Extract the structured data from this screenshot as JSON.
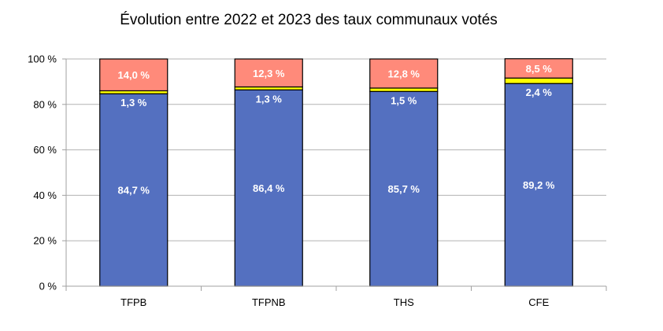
{
  "chart_data": {
    "type": "bar",
    "stacked": true,
    "title": "Évolution entre 2022 et 2023 des taux communaux votés",
    "categories": [
      "TFPB",
      "TFPNB",
      "THS",
      "CFE"
    ],
    "series": [
      {
        "color": "#5470c0",
        "values": [
          84.7,
          86.4,
          85.7,
          89.2
        ],
        "labels": [
          "84,7 %",
          "86,4 %",
          "85,7 %",
          "89,2 %"
        ]
      },
      {
        "color": "#ffff00",
        "values": [
          1.3,
          1.3,
          1.5,
          2.4
        ],
        "labels": [
          "1,3 %",
          "1,3 %",
          "1,5 %",
          "2,4 %"
        ]
      },
      {
        "color": "#ff8a7a",
        "values": [
          14.0,
          12.3,
          12.8,
          8.5
        ],
        "labels": [
          "14,0 %",
          "12,3 %",
          "12,8 %",
          "8,5 %"
        ]
      }
    ],
    "ylim": [
      0,
      100
    ],
    "yticks": [
      0,
      20,
      40,
      60,
      80,
      100
    ],
    "ytick_labels": [
      "0 %",
      "20 %",
      "40 %",
      "60 %",
      "80 %",
      "100 %"
    ],
    "grid": true,
    "xlabel": "",
    "ylabel": ""
  }
}
